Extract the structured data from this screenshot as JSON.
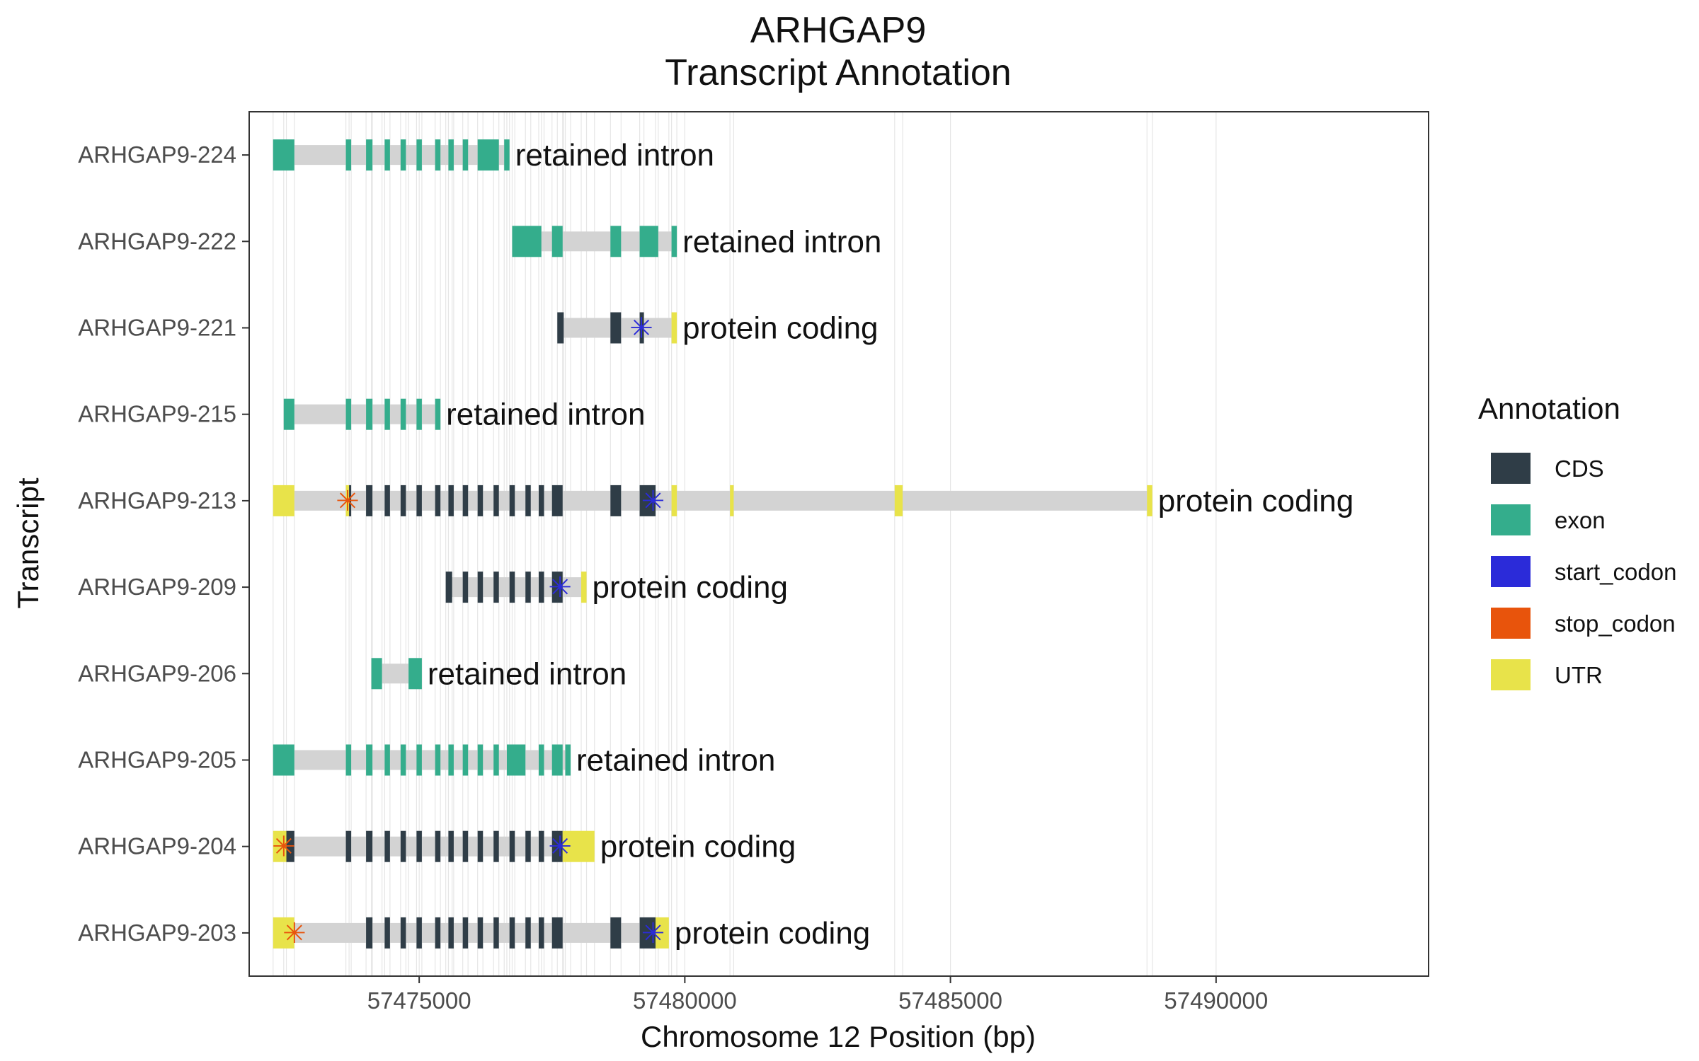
{
  "colors": {
    "CDS": "#2f3d47",
    "exon": "#34ad8c",
    "start_codon": "#2b2bd9",
    "stop_codon": "#e8540c",
    "UTR": "#e8e34a",
    "intron": "#d3d3d3",
    "grid": "#e6e6e6"
  },
  "chart_data": {
    "type": "gene-track",
    "title": "ARHGAP9\nTranscript Annotation",
    "xlabel": "Chromosome 12 Position (bp)",
    "ylabel": "Transcript",
    "xlim": [
      57471800,
      57494000
    ],
    "xticks": [
      57475000,
      57480000,
      57485000,
      57490000
    ],
    "grid": true,
    "legend": {
      "title": "Annotation",
      "position": "right",
      "entries": [
        "CDS",
        "exon",
        "start_codon",
        "stop_codon",
        "UTR"
      ]
    },
    "transcripts": [
      {
        "name": "ARHGAP9-224",
        "biotype": "retained intron",
        "start": 57472250,
        "end": 57476700,
        "features": [
          {
            "type": "exon",
            "start": 57472250,
            "end": 57472650
          },
          {
            "type": "exon",
            "start": 57473620,
            "end": 57473720
          },
          {
            "type": "exon",
            "start": 57474000,
            "end": 57474120
          },
          {
            "type": "exon",
            "start": 57474350,
            "end": 57474450
          },
          {
            "type": "exon",
            "start": 57474650,
            "end": 57474750
          },
          {
            "type": "exon",
            "start": 57474950,
            "end": 57475050
          },
          {
            "type": "exon",
            "start": 57475300,
            "end": 57475400
          },
          {
            "type": "exon",
            "start": 57475550,
            "end": 57475650
          },
          {
            "type": "exon",
            "start": 57475820,
            "end": 57475920
          },
          {
            "type": "exon",
            "start": 57476100,
            "end": 57476500
          },
          {
            "type": "exon",
            "start": 57476600,
            "end": 57476700
          }
        ]
      },
      {
        "name": "ARHGAP9-222",
        "biotype": "retained intron",
        "start": 57476750,
        "end": 57479850,
        "features": [
          {
            "type": "exon",
            "start": 57476750,
            "end": 57477300
          },
          {
            "type": "exon",
            "start": 57477500,
            "end": 57477700
          },
          {
            "type": "exon",
            "start": 57478600,
            "end": 57478800
          },
          {
            "type": "exon",
            "start": 57479150,
            "end": 57479500
          },
          {
            "type": "exon",
            "start": 57479750,
            "end": 57479850
          }
        ]
      },
      {
        "name": "ARHGAP9-221",
        "biotype": "protein coding",
        "start": 57477600,
        "end": 57479850,
        "features": [
          {
            "type": "CDS",
            "start": 57477600,
            "end": 57477720
          },
          {
            "type": "CDS",
            "start": 57478600,
            "end": 57478800
          },
          {
            "type": "CDS",
            "start": 57479150,
            "end": 57479230
          },
          {
            "type": "UTR",
            "start": 57479750,
            "end": 57479850
          },
          {
            "type": "start_codon",
            "start": 57479180,
            "end": 57479183
          }
        ]
      },
      {
        "name": "ARHGAP9-215",
        "biotype": "retained intron",
        "start": 57472450,
        "end": 57475400,
        "features": [
          {
            "type": "exon",
            "start": 57472450,
            "end": 57472650
          },
          {
            "type": "exon",
            "start": 57473620,
            "end": 57473720
          },
          {
            "type": "exon",
            "start": 57474000,
            "end": 57474120
          },
          {
            "type": "exon",
            "start": 57474350,
            "end": 57474450
          },
          {
            "type": "exon",
            "start": 57474650,
            "end": 57474750
          },
          {
            "type": "exon",
            "start": 57474950,
            "end": 57475050
          },
          {
            "type": "exon",
            "start": 57475300,
            "end": 57475400
          }
        ]
      },
      {
        "name": "ARHGAP9-213",
        "biotype": "protein coding",
        "start": 57472250,
        "end": 57488800,
        "features": [
          {
            "type": "UTR",
            "start": 57472250,
            "end": 57472650
          },
          {
            "type": "UTR",
            "start": 57473620,
            "end": 57473680
          },
          {
            "type": "CDS",
            "start": 57473680,
            "end": 57473720
          },
          {
            "type": "CDS",
            "start": 57474000,
            "end": 57474120
          },
          {
            "type": "CDS",
            "start": 57474350,
            "end": 57474450
          },
          {
            "type": "CDS",
            "start": 57474650,
            "end": 57474750
          },
          {
            "type": "CDS",
            "start": 57474950,
            "end": 57475050
          },
          {
            "type": "CDS",
            "start": 57475300,
            "end": 57475400
          },
          {
            "type": "CDS",
            "start": 57475550,
            "end": 57475650
          },
          {
            "type": "CDS",
            "start": 57475820,
            "end": 57475920
          },
          {
            "type": "CDS",
            "start": 57476100,
            "end": 57476200
          },
          {
            "type": "CDS",
            "start": 57476400,
            "end": 57476500
          },
          {
            "type": "CDS",
            "start": 57476700,
            "end": 57476800
          },
          {
            "type": "CDS",
            "start": 57477000,
            "end": 57477100
          },
          {
            "type": "CDS",
            "start": 57477250,
            "end": 57477350
          },
          {
            "type": "CDS",
            "start": 57477500,
            "end": 57477700
          },
          {
            "type": "CDS",
            "start": 57478600,
            "end": 57478800
          },
          {
            "type": "CDS",
            "start": 57479150,
            "end": 57479450
          },
          {
            "type": "UTR",
            "start": 57479750,
            "end": 57479850
          },
          {
            "type": "UTR",
            "start": 57480850,
            "end": 57480920
          },
          {
            "type": "UTR",
            "start": 57483950,
            "end": 57484100
          },
          {
            "type": "UTR",
            "start": 57488700,
            "end": 57488800
          },
          {
            "type": "start_codon",
            "start": 57479400,
            "end": 57479403
          },
          {
            "type": "stop_codon",
            "start": 57473650,
            "end": 57473653
          }
        ]
      },
      {
        "name": "ARHGAP9-209",
        "biotype": "protein coding",
        "start": 57475500,
        "end": 57478150,
        "features": [
          {
            "type": "CDS",
            "start": 57475500,
            "end": 57475620
          },
          {
            "type": "CDS",
            "start": 57475820,
            "end": 57475920
          },
          {
            "type": "CDS",
            "start": 57476100,
            "end": 57476200
          },
          {
            "type": "CDS",
            "start": 57476400,
            "end": 57476500
          },
          {
            "type": "CDS",
            "start": 57476700,
            "end": 57476800
          },
          {
            "type": "CDS",
            "start": 57477000,
            "end": 57477100
          },
          {
            "type": "CDS",
            "start": 57477250,
            "end": 57477350
          },
          {
            "type": "CDS",
            "start": 57477500,
            "end": 57477700
          },
          {
            "type": "UTR",
            "start": 57478050,
            "end": 57478150
          },
          {
            "type": "start_codon",
            "start": 57477650,
            "end": 57477653
          }
        ]
      },
      {
        "name": "ARHGAP9-206",
        "biotype": "retained intron",
        "start": 57474100,
        "end": 57475050,
        "features": [
          {
            "type": "exon",
            "start": 57474100,
            "end": 57474300
          },
          {
            "type": "exon",
            "start": 57474800,
            "end": 57475050
          }
        ]
      },
      {
        "name": "ARHGAP9-205",
        "biotype": "retained intron",
        "start": 57472250,
        "end": 57477850,
        "features": [
          {
            "type": "exon",
            "start": 57472250,
            "end": 57472650
          },
          {
            "type": "exon",
            "start": 57473620,
            "end": 57473720
          },
          {
            "type": "exon",
            "start": 57474000,
            "end": 57474120
          },
          {
            "type": "exon",
            "start": 57474350,
            "end": 57474450
          },
          {
            "type": "exon",
            "start": 57474650,
            "end": 57474750
          },
          {
            "type": "exon",
            "start": 57474950,
            "end": 57475050
          },
          {
            "type": "exon",
            "start": 57475300,
            "end": 57475400
          },
          {
            "type": "exon",
            "start": 57475550,
            "end": 57475650
          },
          {
            "type": "exon",
            "start": 57475820,
            "end": 57475920
          },
          {
            "type": "exon",
            "start": 57476100,
            "end": 57476200
          },
          {
            "type": "exon",
            "start": 57476400,
            "end": 57476500
          },
          {
            "type": "exon",
            "start": 57476650,
            "end": 57477000
          },
          {
            "type": "exon",
            "start": 57477250,
            "end": 57477350
          },
          {
            "type": "exon",
            "start": 57477500,
            "end": 57477700
          },
          {
            "type": "exon",
            "start": 57477750,
            "end": 57477850
          }
        ]
      },
      {
        "name": "ARHGAP9-204",
        "biotype": "protein coding",
        "start": 57472250,
        "end": 57478300,
        "features": [
          {
            "type": "UTR",
            "start": 57472250,
            "end": 57472500
          },
          {
            "type": "CDS",
            "start": 57472500,
            "end": 57472650
          },
          {
            "type": "CDS",
            "start": 57473620,
            "end": 57473720
          },
          {
            "type": "CDS",
            "start": 57474000,
            "end": 57474120
          },
          {
            "type": "CDS",
            "start": 57474350,
            "end": 57474450
          },
          {
            "type": "CDS",
            "start": 57474650,
            "end": 57474750
          },
          {
            "type": "CDS",
            "start": 57474950,
            "end": 57475050
          },
          {
            "type": "CDS",
            "start": 57475300,
            "end": 57475400
          },
          {
            "type": "CDS",
            "start": 57475550,
            "end": 57475650
          },
          {
            "type": "CDS",
            "start": 57475820,
            "end": 57475920
          },
          {
            "type": "CDS",
            "start": 57476100,
            "end": 57476200
          },
          {
            "type": "CDS",
            "start": 57476400,
            "end": 57476500
          },
          {
            "type": "CDS",
            "start": 57476700,
            "end": 57476800
          },
          {
            "type": "CDS",
            "start": 57477000,
            "end": 57477100
          },
          {
            "type": "CDS",
            "start": 57477250,
            "end": 57477350
          },
          {
            "type": "CDS",
            "start": 57477500,
            "end": 57477700
          },
          {
            "type": "UTR",
            "start": 57477700,
            "end": 57478300
          },
          {
            "type": "start_codon",
            "start": 57477650,
            "end": 57477653
          },
          {
            "type": "stop_codon",
            "start": 57472450,
            "end": 57472453
          }
        ]
      },
      {
        "name": "ARHGAP9-203",
        "biotype": "protein coding",
        "start": 57472250,
        "end": 57479700,
        "features": [
          {
            "type": "UTR",
            "start": 57472250,
            "end": 57472650
          },
          {
            "type": "CDS",
            "start": 57474000,
            "end": 57474120
          },
          {
            "type": "CDS",
            "start": 57474350,
            "end": 57474450
          },
          {
            "type": "CDS",
            "start": 57474650,
            "end": 57474750
          },
          {
            "type": "CDS",
            "start": 57474950,
            "end": 57475050
          },
          {
            "type": "CDS",
            "start": 57475300,
            "end": 57475400
          },
          {
            "type": "CDS",
            "start": 57475550,
            "end": 57475650
          },
          {
            "type": "CDS",
            "start": 57475820,
            "end": 57475920
          },
          {
            "type": "CDS",
            "start": 57476100,
            "end": 57476200
          },
          {
            "type": "CDS",
            "start": 57476400,
            "end": 57476500
          },
          {
            "type": "CDS",
            "start": 57476700,
            "end": 57476800
          },
          {
            "type": "CDS",
            "start": 57477000,
            "end": 57477100
          },
          {
            "type": "CDS",
            "start": 57477250,
            "end": 57477350
          },
          {
            "type": "CDS",
            "start": 57477500,
            "end": 57477700
          },
          {
            "type": "CDS",
            "start": 57478600,
            "end": 57478800
          },
          {
            "type": "CDS",
            "start": 57479150,
            "end": 57479450
          },
          {
            "type": "UTR",
            "start": 57479450,
            "end": 57479700
          },
          {
            "type": "start_codon",
            "start": 57479400,
            "end": 57479403
          },
          {
            "type": "stop_codon",
            "start": 57472650,
            "end": 57472653
          }
        ]
      }
    ]
  }
}
